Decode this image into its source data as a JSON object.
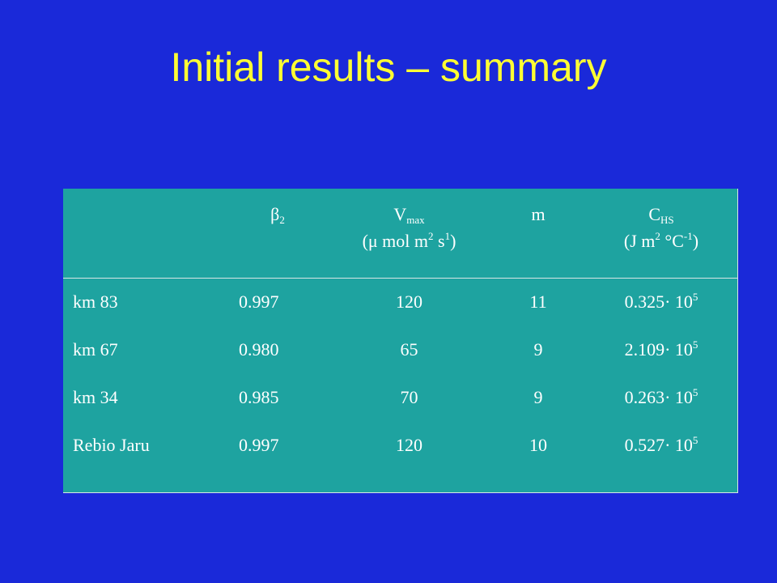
{
  "title": "Initial results – summary",
  "table": {
    "headers": {
      "beta": {
        "symbol": "β",
        "sub": "2"
      },
      "vmax": {
        "symbol": "V",
        "sub": "max",
        "unit_open": "(μ mol m",
        "unit_sup1": "2",
        "unit_mid": " s",
        "unit_sup2": "1",
        "unit_close": ")"
      },
      "m": {
        "symbol": "m"
      },
      "chs": {
        "symbol": "C",
        "sub": "HS",
        "unit_open": "(J m",
        "unit_sup1": "2",
        "unit_mid": " °C",
        "unit_sup2": "-1",
        "unit_close": ")"
      }
    },
    "rows": [
      {
        "site": "km 83",
        "beta": "0.997",
        "vmax": "120",
        "m": "11",
        "chs_base": "0.325· 10",
        "chs_exp": "5"
      },
      {
        "site": "km 67",
        "beta": "0.980",
        "vmax": "65",
        "m": "9",
        "chs_base": "2.109· 10",
        "chs_exp": "5"
      },
      {
        "site": "km 34",
        "beta": "0.985",
        "vmax": "70",
        "m": "9",
        "chs_base": "0.263· 10",
        "chs_exp": "5"
      },
      {
        "site": "Rebio Jaru",
        "beta": "0.997",
        "vmax": "120",
        "m": "10",
        "chs_base": "0.527· 10",
        "chs_exp": "5"
      }
    ]
  },
  "colors": {
    "background": "#1a29d9",
    "title": "#ffff33",
    "table_fill": "#1ea3a0",
    "table_text": "#ffffff"
  }
}
